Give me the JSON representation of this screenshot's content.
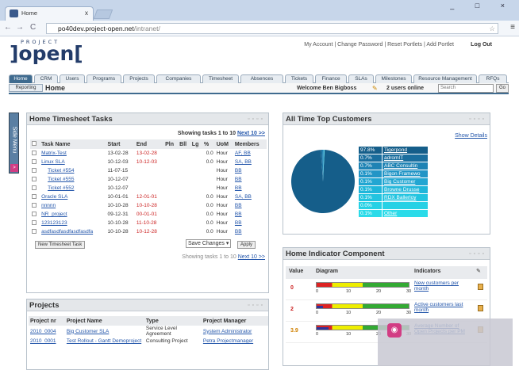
{
  "browser": {
    "tab_title": "Home",
    "tab_close": "x",
    "url_host": "po40dev.project-open.net",
    "url_path": "/intranet/",
    "window_controls": "_ □ ×",
    "back": "←",
    "forward": "→",
    "reload": "C",
    "star": "☆",
    "menu": "≡"
  },
  "logo": {
    "top": "PROJECT",
    "main": "]open["
  },
  "header": {
    "links": "My Account | Change Password | Reset Portlets | Add Portlet",
    "logout": "Log Out"
  },
  "tabs": [
    "Home",
    "CRM",
    "Users",
    "Programs",
    "Projects",
    "Companies",
    "Timesheet",
    "Absences",
    "Tickets",
    "Finance",
    "SLAs",
    "Milestones",
    "Resource Management",
    "RFQs"
  ],
  "subbar": {
    "reporting": "Reporting",
    "home": "Home",
    "welcome": "Welcome Ben Bigboss",
    "users": "2 users online",
    "search_placeholder": "Search",
    "go": "Go"
  },
  "sidemenu": {
    "label": "Side Menu",
    "arrow": ">"
  },
  "timesheet": {
    "title": "Home Timesheet Tasks",
    "showing": "Showing tasks 1 to 10",
    "next": "Next 10 >>",
    "showing2": "Showing tasks 1 to 10",
    "next2": "Next 10 >>",
    "headers": [
      "Task Name",
      "Start",
      "End",
      "Pln",
      "Bll",
      "Lg",
      "%",
      "UoM",
      "Members"
    ],
    "rows": [
      {
        "name": "Matrix-Test",
        "start": "13-02-28",
        "end": "13-02-28",
        "lg": "0.0",
        "uom": "Hour",
        "members": "AF, BB",
        "late": true
      },
      {
        "name": "Linux SLA",
        "start": "10-12-03",
        "end": "10-12-03",
        "lg": "0.0",
        "uom": "Hour",
        "members": "SA, BB",
        "late": true
      },
      {
        "name": "Ticket #554",
        "start": "11-07-15",
        "end": "",
        "lg": "",
        "uom": "Hour",
        "members": "BB",
        "late": false
      },
      {
        "name": "Ticket #555",
        "start": "10-12-07",
        "end": "",
        "lg": "",
        "uom": "Hour",
        "members": "BB",
        "late": false
      },
      {
        "name": "Ticket #552",
        "start": "10-12-07",
        "end": "",
        "lg": "",
        "uom": "Hour",
        "members": "BB",
        "late": false
      },
      {
        "name": "Oracle SLA",
        "start": "10-01-01",
        "end": "12-01-01",
        "lg": "0.0",
        "uom": "Hour",
        "members": "SA, BB",
        "late": true
      },
      {
        "name": "nnnnn",
        "start": "10-10-28",
        "end": "10-10-28",
        "lg": "0.0",
        "uom": "Hour",
        "members": "BB",
        "late": true
      },
      {
        "name": "NR_project",
        "start": "09-12-31",
        "end": "00-01-01",
        "lg": "0.0",
        "uom": "Hour",
        "members": "BB",
        "late": true
      },
      {
        "name": "123123123",
        "start": "10-10-28",
        "end": "11-10-28",
        "lg": "0.0",
        "uom": "Hour",
        "members": "BB",
        "late": true
      },
      {
        "name": "asdfasdfasdfasdfasdfa",
        "start": "10-10-28",
        "end": "10-12-28",
        "lg": "0.0",
        "uom": "Hour",
        "members": "BB",
        "late": true
      }
    ],
    "new_task": "New Timesheet Task",
    "save_select": "Save Changes",
    "apply": "Apply"
  },
  "projects": {
    "title": "Projects",
    "headers": [
      "Project nr",
      "Project Name",
      "Type",
      "Project Manager"
    ],
    "rows": [
      {
        "nr": "2010_0004",
        "name": "Big Customer SLA",
        "type": "Service Level Agreement",
        "pm": "System Administrator"
      },
      {
        "nr": "2010_0001",
        "name": "Test Rollout - Gantt Demoproject",
        "type": "Consulting Project",
        "pm": "Petra Projectmanager"
      },
      {
        "nr": "",
        "name": "",
        "type": "",
        "pm": ""
      }
    ]
  },
  "customers": {
    "title": "All Time Top Customers",
    "show_details": "Show Details",
    "chart_data": {
      "type": "pie",
      "series": [
        {
          "values": [
            97.8,
            0.7,
            0.7,
            0.1,
            0.1,
            0.1,
            0.1,
            0.0,
            0.1
          ]
        }
      ],
      "categories": [
        "Tigerpond",
        "adromIT",
        "ABC Consultin",
        "Bigon Framewo",
        "Big Customer",
        "Browne Drusse",
        "RDX Ballerloy",
        "",
        "Other"
      ]
    },
    "legend": [
      {
        "pct": "97.8%",
        "name": "Tigerpond",
        "color": "#155e8a"
      },
      {
        "pct": "0.7%",
        "name": "adromIT",
        "color": "#1a6e9e"
      },
      {
        "pct": "0.7%",
        "name": "ABC Consultin",
        "color": "#1f83b4"
      },
      {
        "pct": "0.1%",
        "name": "Bigon Framewo",
        "color": "#2295c6"
      },
      {
        "pct": "0.1%",
        "name": "Big Customer",
        "color": "#22a6d2"
      },
      {
        "pct": "0.1%",
        "name": "Browne Drusse",
        "color": "#1fb6da"
      },
      {
        "pct": "0.1%",
        "name": "RDX Ballerloy",
        "color": "#22c4e0"
      },
      {
        "pct": "0.0%",
        "name": "",
        "color": "#26d1e5"
      },
      {
        "pct": "0.1%",
        "name": "Other",
        "color": "#2bdbe9"
      }
    ]
  },
  "indicator": {
    "title": "Home Indicator Component",
    "headers": [
      "Value",
      "Diagram",
      "Indicators"
    ],
    "ticks": [
      "0",
      "10",
      "20",
      "30"
    ],
    "rows": [
      {
        "value": "0",
        "label": "New customers per month",
        "fill": 0.0
      },
      {
        "value": "2",
        "label": "Active customers last month",
        "fill": 0.07
      },
      {
        "value": "3.9",
        "label": "Average Number of Open Projects per PM",
        "fill": 0.13
      }
    ]
  }
}
